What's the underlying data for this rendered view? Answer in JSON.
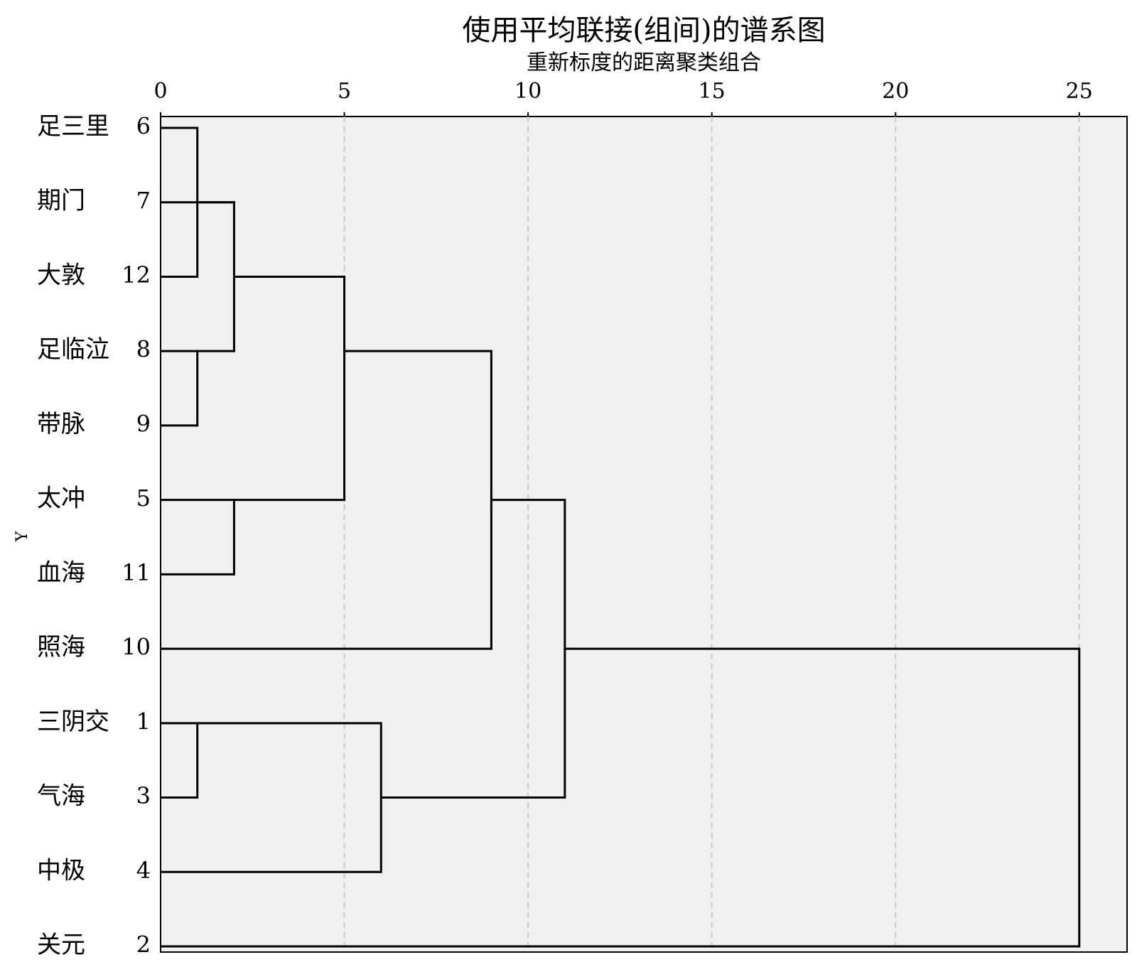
{
  "chart_data": {
    "type": "dendrogram",
    "title": "使用平均联接(组间)的谱系图",
    "x_label": "重新标度的距离聚类组合",
    "y_label": "Y",
    "categories": [
      "足三里",
      "期门",
      "大敦",
      "足临泣",
      "带脉",
      "太冲",
      "血海",
      "照海",
      "三阴交",
      "气海",
      "中极",
      "关元"
    ],
    "case_labels": [
      "6",
      "7",
      "12",
      "8",
      "9",
      "5",
      "11",
      "10",
      "1",
      "3",
      "4",
      "2"
    ],
    "linkage": [
      [
        0,
        2,
        1
      ],
      [
        3,
        4,
        1
      ],
      [
        8,
        9,
        1
      ],
      [
        12,
        1,
        2
      ],
      [
        15,
        13,
        2
      ],
      [
        5,
        6,
        2
      ],
      [
        16,
        17,
        5
      ],
      [
        18,
        7,
        9
      ],
      [
        14,
        10,
        6
      ],
      [
        19,
        20,
        11
      ],
      [
        21,
        11,
        25
      ]
    ],
    "xlim": [
      0,
      26.3
    ],
    "xticks": [
      0,
      5,
      10,
      15,
      20,
      25
    ],
    "grid": true,
    "color": "#000000"
  }
}
